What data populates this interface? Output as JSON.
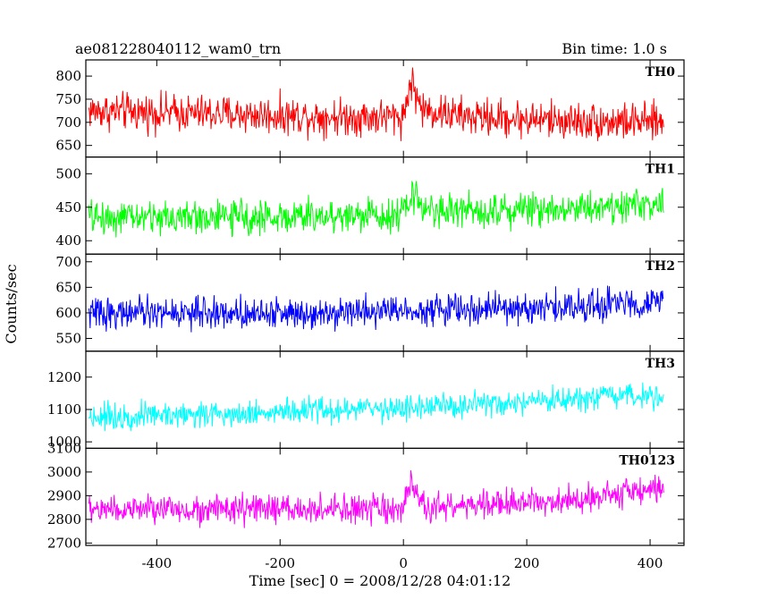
{
  "chart_data": {
    "type": "line",
    "title_left": "ae081228040112_wam0_trn",
    "title_right": "Bin time: 1.0 s",
    "xlabel": "Time [sec] 0 = 2008/12/28 04:01:12",
    "ylabel": "Counts/sec",
    "xlim": [
      -515,
      455
    ],
    "xticks": [
      -400,
      -200,
      0,
      200,
      400
    ],
    "x_data_range": [
      -510,
      422
    ],
    "grid": false,
    "panels": [
      {
        "name": "TH0",
        "color": "#ff0000",
        "ylim": [
          625,
          835
        ],
        "yticks": [
          650,
          700,
          750,
          800
        ],
        "baseline": [
          [
            -510,
            725
          ],
          [
            -300,
            718
          ],
          [
            -100,
            712
          ],
          [
            0,
            712
          ],
          [
            12,
            790
          ],
          [
            30,
            728
          ],
          [
            100,
            712
          ],
          [
            300,
            702
          ],
          [
            422,
            700
          ]
        ],
        "noise": 32
      },
      {
        "name": "TH1",
        "color": "#00ff00",
        "ylim": [
          380,
          525
        ],
        "yticks": [
          400,
          450,
          500
        ],
        "baseline": [
          [
            -510,
            435
          ],
          [
            -200,
            435
          ],
          [
            0,
            440
          ],
          [
            15,
            470
          ],
          [
            40,
            445
          ],
          [
            200,
            447
          ],
          [
            422,
            455
          ]
        ],
        "noise": 20
      },
      {
        "name": "TH2",
        "color": "#0000ff",
        "ylim": [
          525,
          715
        ],
        "yticks": [
          550,
          600,
          650,
          700
        ],
        "baseline": [
          [
            -510,
            600
          ],
          [
            -200,
            600
          ],
          [
            0,
            606
          ],
          [
            200,
            608
          ],
          [
            422,
            622
          ]
        ],
        "noise": 24
      },
      {
        "name": "TH3",
        "color": "#00ffff",
        "ylim": [
          980,
          1280
        ],
        "yticks": [
          1000,
          1100,
          1200
        ],
        "baseline": [
          [
            -510,
            1078
          ],
          [
            -200,
            1092
          ],
          [
            0,
            1105
          ],
          [
            200,
            1118
          ],
          [
            422,
            1148
          ]
        ],
        "noise": 32
      },
      {
        "name": "TH0123",
        "color": "#ff00ff",
        "ylim": [
          2690,
          3100
        ],
        "yticks": [
          2700,
          2800,
          2900,
          3000,
          3100
        ],
        "baseline": [
          [
            -510,
            2842
          ],
          [
            -200,
            2842
          ],
          [
            0,
            2840
          ],
          [
            12,
            2950
          ],
          [
            30,
            2850
          ],
          [
            200,
            2868
          ],
          [
            422,
            2930
          ]
        ],
        "noise": 48
      }
    ]
  }
}
